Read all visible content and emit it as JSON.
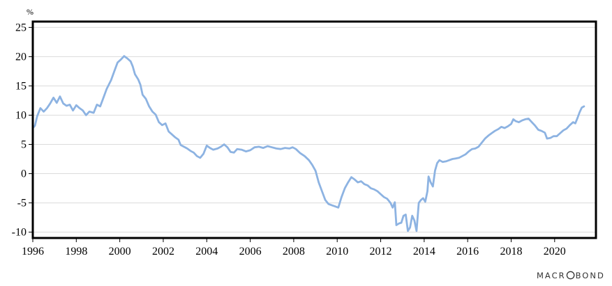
{
  "chart_data": {
    "type": "line",
    "title": "",
    "xlabel": "",
    "ylabel": "%",
    "xlim": [
      1996.0,
      2021.9
    ],
    "ylim": [
      -11,
      26
    ],
    "y_ticks": [
      -10,
      -5,
      0,
      5,
      10,
      15,
      20,
      25
    ],
    "x_ticks": [
      1996,
      1998,
      2000,
      2002,
      2004,
      2006,
      2008,
      2010,
      2012,
      2014,
      2016,
      2018,
      2020
    ],
    "grid": "horizontal",
    "legend": "none",
    "series": [
      {
        "color": "#8db3e2",
        "points": [
          [
            1996.0,
            7.8
          ],
          [
            1996.1,
            8.2
          ],
          [
            1996.2,
            9.8
          ],
          [
            1996.35,
            11.2
          ],
          [
            1996.5,
            10.6
          ],
          [
            1996.65,
            11.2
          ],
          [
            1996.8,
            12.0
          ],
          [
            1996.95,
            13.0
          ],
          [
            1997.1,
            12.1
          ],
          [
            1997.25,
            13.2
          ],
          [
            1997.4,
            12.0
          ],
          [
            1997.55,
            11.6
          ],
          [
            1997.7,
            11.8
          ],
          [
            1997.85,
            10.8
          ],
          [
            1998.0,
            11.7
          ],
          [
            1998.15,
            11.2
          ],
          [
            1998.3,
            10.8
          ],
          [
            1998.45,
            10.0
          ],
          [
            1998.6,
            10.6
          ],
          [
            1998.8,
            10.4
          ],
          [
            1998.95,
            11.8
          ],
          [
            1999.1,
            11.5
          ],
          [
            1999.25,
            13.0
          ],
          [
            1999.4,
            14.5
          ],
          [
            1999.6,
            16.0
          ],
          [
            1999.75,
            17.5
          ],
          [
            1999.9,
            19.0
          ],
          [
            2000.05,
            19.5
          ],
          [
            2000.2,
            20.1
          ],
          [
            2000.35,
            19.7
          ],
          [
            2000.5,
            19.2
          ],
          [
            2000.6,
            18.3
          ],
          [
            2000.7,
            17.0
          ],
          [
            2000.85,
            16.1
          ],
          [
            2000.95,
            15.2
          ],
          [
            2001.05,
            13.5
          ],
          [
            2001.2,
            12.8
          ],
          [
            2001.35,
            11.5
          ],
          [
            2001.5,
            10.6
          ],
          [
            2001.65,
            10.1
          ],
          [
            2001.8,
            8.8
          ],
          [
            2001.95,
            8.3
          ],
          [
            2002.1,
            8.6
          ],
          [
            2002.25,
            7.2
          ],
          [
            2002.4,
            6.7
          ],
          [
            2002.55,
            6.2
          ],
          [
            2002.7,
            5.8
          ],
          [
            2002.8,
            4.9
          ],
          [
            2002.95,
            4.6
          ],
          [
            2003.1,
            4.3
          ],
          [
            2003.25,
            3.9
          ],
          [
            2003.4,
            3.6
          ],
          [
            2003.55,
            3.0
          ],
          [
            2003.7,
            2.7
          ],
          [
            2003.85,
            3.4
          ],
          [
            2004.0,
            4.8
          ],
          [
            2004.15,
            4.4
          ],
          [
            2004.3,
            4.1
          ],
          [
            2004.5,
            4.3
          ],
          [
            2004.65,
            4.6
          ],
          [
            2004.8,
            5.0
          ],
          [
            2004.95,
            4.5
          ],
          [
            2005.1,
            3.7
          ],
          [
            2005.25,
            3.6
          ],
          [
            2005.4,
            4.2
          ],
          [
            2005.6,
            4.1
          ],
          [
            2005.8,
            3.8
          ],
          [
            2006.0,
            4.0
          ],
          [
            2006.2,
            4.5
          ],
          [
            2006.4,
            4.6
          ],
          [
            2006.6,
            4.4
          ],
          [
            2006.8,
            4.7
          ],
          [
            2007.0,
            4.5
          ],
          [
            2007.2,
            4.3
          ],
          [
            2007.4,
            4.2
          ],
          [
            2007.6,
            4.4
          ],
          [
            2007.8,
            4.3
          ],
          [
            2007.95,
            4.5
          ],
          [
            2008.1,
            4.2
          ],
          [
            2008.3,
            3.5
          ],
          [
            2008.5,
            3.0
          ],
          [
            2008.7,
            2.3
          ],
          [
            2008.85,
            1.5
          ],
          [
            2009.0,
            0.5
          ],
          [
            2009.15,
            -1.5
          ],
          [
            2009.3,
            -3.0
          ],
          [
            2009.45,
            -4.5
          ],
          [
            2009.6,
            -5.2
          ],
          [
            2009.75,
            -5.4
          ],
          [
            2009.9,
            -5.6
          ],
          [
            2010.05,
            -5.8
          ],
          [
            2010.2,
            -4.0
          ],
          [
            2010.35,
            -2.5
          ],
          [
            2010.5,
            -1.5
          ],
          [
            2010.65,
            -0.6
          ],
          [
            2010.8,
            -1.0
          ],
          [
            2010.95,
            -1.5
          ],
          [
            2011.1,
            -1.3
          ],
          [
            2011.25,
            -1.8
          ],
          [
            2011.4,
            -2.0
          ],
          [
            2011.55,
            -2.5
          ],
          [
            2011.7,
            -2.7
          ],
          [
            2011.85,
            -3.0
          ],
          [
            2012.0,
            -3.5
          ],
          [
            2012.15,
            -4.0
          ],
          [
            2012.3,
            -4.3
          ],
          [
            2012.45,
            -5.0
          ],
          [
            2012.55,
            -5.8
          ],
          [
            2012.65,
            -4.9
          ],
          [
            2012.72,
            -8.8
          ],
          [
            2012.85,
            -8.5
          ],
          [
            2012.95,
            -8.4
          ],
          [
            2013.05,
            -7.2
          ],
          [
            2013.15,
            -7.0
          ],
          [
            2013.25,
            -9.8
          ],
          [
            2013.35,
            -9.2
          ],
          [
            2013.45,
            -7.2
          ],
          [
            2013.55,
            -8.0
          ],
          [
            2013.65,
            -9.8
          ],
          [
            2013.75,
            -5.0
          ],
          [
            2013.85,
            -4.5
          ],
          [
            2013.95,
            -4.2
          ],
          [
            2014.05,
            -4.8
          ],
          [
            2014.15,
            -3.0
          ],
          [
            2014.2,
            -0.5
          ],
          [
            2014.3,
            -1.5
          ],
          [
            2014.4,
            -2.2
          ],
          [
            2014.5,
            0.5
          ],
          [
            2014.6,
            1.8
          ],
          [
            2014.7,
            2.3
          ],
          [
            2014.85,
            2.0
          ],
          [
            2015.0,
            2.1
          ],
          [
            2015.15,
            2.3
          ],
          [
            2015.3,
            2.5
          ],
          [
            2015.45,
            2.6
          ],
          [
            2015.6,
            2.7
          ],
          [
            2015.75,
            3.0
          ],
          [
            2015.9,
            3.3
          ],
          [
            2016.05,
            3.8
          ],
          [
            2016.2,
            4.2
          ],
          [
            2016.35,
            4.3
          ],
          [
            2016.5,
            4.6
          ],
          [
            2016.65,
            5.3
          ],
          [
            2016.8,
            6.0
          ],
          [
            2016.95,
            6.5
          ],
          [
            2017.1,
            6.9
          ],
          [
            2017.25,
            7.3
          ],
          [
            2017.4,
            7.6
          ],
          [
            2017.55,
            8.0
          ],
          [
            2017.7,
            7.8
          ],
          [
            2017.85,
            8.1
          ],
          [
            2018.0,
            8.5
          ],
          [
            2018.1,
            9.3
          ],
          [
            2018.2,
            9.0
          ],
          [
            2018.35,
            8.8
          ],
          [
            2018.5,
            9.1
          ],
          [
            2018.65,
            9.3
          ],
          [
            2018.8,
            9.4
          ],
          [
            2018.95,
            8.8
          ],
          [
            2019.1,
            8.2
          ],
          [
            2019.25,
            7.5
          ],
          [
            2019.4,
            7.3
          ],
          [
            2019.55,
            7.0
          ],
          [
            2019.65,
            6.0
          ],
          [
            2019.8,
            6.1
          ],
          [
            2019.95,
            6.4
          ],
          [
            2020.1,
            6.4
          ],
          [
            2020.25,
            6.9
          ],
          [
            2020.4,
            7.4
          ],
          [
            2020.55,
            7.7
          ],
          [
            2020.7,
            8.3
          ],
          [
            2020.85,
            8.8
          ],
          [
            2020.95,
            8.6
          ],
          [
            2021.05,
            9.5
          ],
          [
            2021.15,
            10.5
          ],
          [
            2021.25,
            11.3
          ],
          [
            2021.35,
            11.5
          ]
        ]
      }
    ]
  },
  "watermark": "MACROBOND"
}
